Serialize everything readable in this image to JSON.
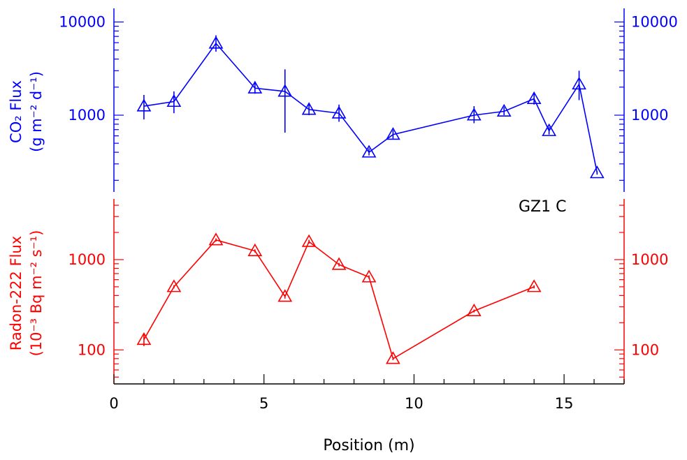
{
  "annotation": "GZ1 C",
  "x_axis": {
    "label": "Position (m)",
    "range": [
      0,
      17
    ],
    "ticks": [
      0,
      5,
      10,
      15
    ],
    "tick_labels": [
      "0",
      "5",
      "10",
      "15"
    ]
  },
  "colors": {
    "co2": "#0000ff",
    "radon": "#ff0000",
    "axis": "#000000"
  },
  "chart_data": [
    {
      "type": "line",
      "scale": "log",
      "ylabel_line1": "CO₂ Flux",
      "ylabel_line2": "(g m⁻² d⁻¹)",
      "ylim": [
        150,
        14000
      ],
      "yticks_major": [
        1000,
        10000
      ],
      "ytick_labels": [
        "1000",
        "10000"
      ],
      "marker": "triangle",
      "color": "#0000ff",
      "points": [
        {
          "x": 1.0,
          "y": 1250,
          "err": [
            900,
            1650
          ]
        },
        {
          "x": 2.0,
          "y": 1400,
          "err": [
            1050,
            1800
          ]
        },
        {
          "x": 3.4,
          "y": 5900,
          "err": [
            4800,
            7200
          ]
        },
        {
          "x": 4.7,
          "y": 1950,
          "err": [
            1700,
            2250
          ]
        },
        {
          "x": 5.7,
          "y": 1800,
          "err": [
            650,
            3100
          ]
        },
        {
          "x": 6.5,
          "y": 1150,
          "err": [
            1000,
            1300
          ]
        },
        {
          "x": 7.5,
          "y": 1050,
          "err": [
            850,
            1300
          ]
        },
        {
          "x": 8.5,
          "y": 400,
          "err": [
            370,
            440
          ]
        },
        {
          "x": 9.3,
          "y": 620,
          "err": [
            560,
            690
          ]
        },
        {
          "x": 12.0,
          "y": 1000,
          "err": [
            820,
            1250
          ]
        },
        {
          "x": 13.0,
          "y": 1100,
          "err": [
            1000,
            1220
          ]
        },
        {
          "x": 14.0,
          "y": 1500,
          "err": [
            1300,
            1700
          ]
        },
        {
          "x": 14.5,
          "y": 680,
          "err": [
            620,
            750
          ]
        },
        {
          "x": 15.5,
          "y": 2150,
          "err": [
            1450,
            3000
          ]
        },
        {
          "x": 16.1,
          "y": 240,
          "err": [
            230,
            250
          ]
        }
      ]
    },
    {
      "type": "line",
      "scale": "log",
      "ylabel_line1": "Radon-222 Flux",
      "ylabel_line2": "(10⁻³ Bq m⁻² s⁻¹)",
      "ylim": [
        42,
        4700
      ],
      "yticks_major": [
        100,
        1000
      ],
      "ytick_labels": [
        "100",
        "1000"
      ],
      "marker": "triangle",
      "color": "#ff0000",
      "points": [
        {
          "x": 1.0,
          "y": 130,
          "err": [
            110,
            150
          ]
        },
        {
          "x": 2.0,
          "y": 500,
          "err": [
            480,
            520
          ]
        },
        {
          "x": 3.4,
          "y": 1650,
          "err": [
            1580,
            1720
          ]
        },
        {
          "x": 4.7,
          "y": 1250,
          "err": [
            1200,
            1300
          ]
        },
        {
          "x": 5.7,
          "y": 390,
          "err": [
            370,
            410
          ]
        },
        {
          "x": 6.5,
          "y": 1580,
          "err": [
            1500,
            1660
          ]
        },
        {
          "x": 7.5,
          "y": 880,
          "err": [
            840,
            920
          ]
        },
        {
          "x": 8.5,
          "y": 640,
          "err": [
            610,
            670
          ]
        },
        {
          "x": 9.3,
          "y": 80,
          "err": [
            77,
            83
          ]
        },
        {
          "x": 12.0,
          "y": 270,
          "err": [
            260,
            280
          ]
        },
        {
          "x": 14.0,
          "y": 500,
          "err": [
            480,
            520
          ]
        }
      ]
    }
  ]
}
